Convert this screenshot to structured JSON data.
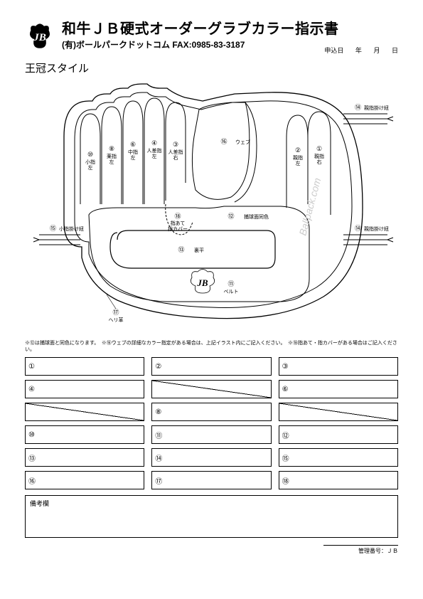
{
  "header": {
    "title": "和牛ＪＢ硬式オーダーグラブカラー指示書",
    "subtitle": "(有)ボールパークドットコム FAX:0985-83-3187",
    "date_label": "申込日",
    "year": "年",
    "month": "月",
    "day": "日"
  },
  "style_name": "王冠スタイル",
  "glove": {
    "watermark": "Ballpack.com",
    "parts": {
      "1": {
        "num": "①",
        "label": "親指右"
      },
      "2": {
        "num": "②",
        "label": "親指左"
      },
      "3": {
        "num": "③",
        "label": "人差指右"
      },
      "4": {
        "num": "④",
        "label": "人差指左"
      },
      "6": {
        "num": "⑥",
        "label": "中指左"
      },
      "8": {
        "num": "⑧",
        "label": "薬指左"
      },
      "10": {
        "num": "⑩",
        "label": "小指左"
      },
      "11": {
        "num": "⑪",
        "label": "ベルト"
      },
      "12": {
        "num": "⑫",
        "label": "捕球面同色"
      },
      "13": {
        "num": "⑬",
        "label": "裏平"
      },
      "14a": {
        "num": "⑭",
        "label": "親指掛け紐"
      },
      "14b": {
        "num": "⑭",
        "label": "親指掛け紐"
      },
      "15": {
        "num": "⑮",
        "label": "小指掛け紐"
      },
      "16": {
        "num": "⑯",
        "label": "ウェブ"
      },
      "17": {
        "num": "⑰",
        "label": "ヘリ革"
      },
      "18": {
        "num": "⑱",
        "label": "指あて指カバー"
      }
    }
  },
  "notes": "※⑫は捕球面と同色になります。　※⑯ウェブの詳細なカラー指定がある場合は、上記イラスト内にご記入ください。　※⑱指あて・指カバーがある場合はご記入ください。",
  "form": {
    "cells": [
      {
        "num": "①",
        "diag": false
      },
      {
        "num": "②",
        "diag": false
      },
      {
        "num": "③",
        "diag": false
      },
      {
        "num": "④",
        "diag": false
      },
      {
        "num": "",
        "diag": true
      },
      {
        "num": "⑥",
        "diag": false
      },
      {
        "num": "",
        "diag": true
      },
      {
        "num": "⑧",
        "diag": false
      },
      {
        "num": "",
        "diag": true
      },
      {
        "num": "⑩",
        "diag": false
      },
      {
        "num": "⑪",
        "diag": false
      },
      {
        "num": "⑫",
        "diag": false
      },
      {
        "num": "⑬",
        "diag": false
      },
      {
        "num": "⑭",
        "diag": false
      },
      {
        "num": "⑮",
        "diag": false
      },
      {
        "num": "⑯",
        "diag": false
      },
      {
        "num": "⑰",
        "diag": false
      },
      {
        "num": "⑱",
        "diag": false
      }
    ]
  },
  "remarks_label": "備考欄",
  "mgmt_label": "管理番号：ＪＢ",
  "colors": {
    "stroke": "#000000",
    "bg": "#ffffff",
    "watermark": "#cccccc"
  }
}
